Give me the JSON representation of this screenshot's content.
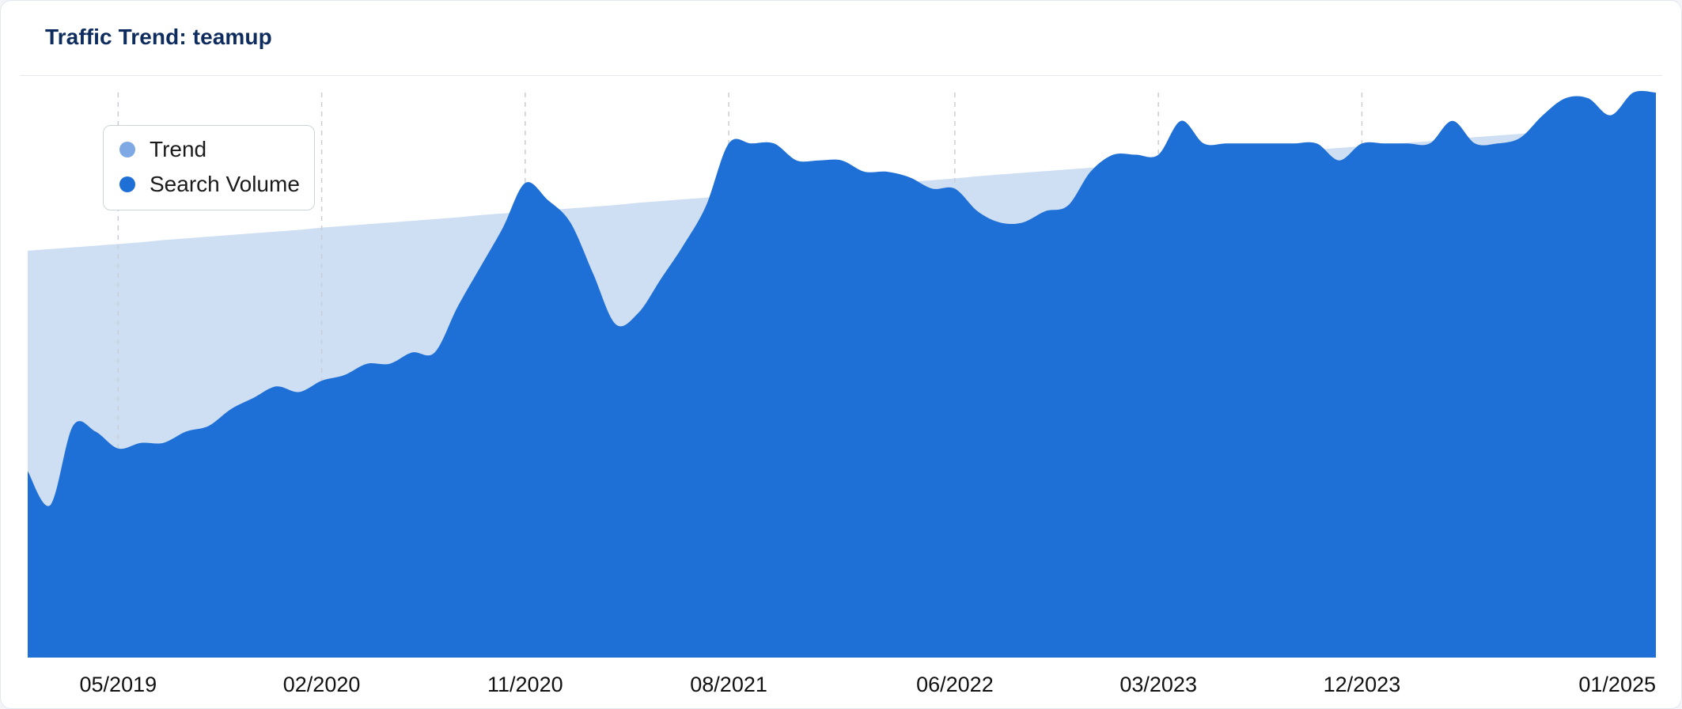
{
  "card": {
    "title": "Traffic Trend: teamup"
  },
  "colors": {
    "search_volume": "#1f70d6",
    "trend_fill": "#cfdff3",
    "trend_legend": "#7ea9e4",
    "gridline": "#c9ced6",
    "axis_text": "#111111"
  },
  "chart_data": {
    "type": "area",
    "title": "Traffic Trend: teamup",
    "xlabel": "",
    "ylabel": "",
    "legend_position": "top-left",
    "grid": "vertical dashed lines at labeled months",
    "x_tick_labels": [
      "05/2019",
      "02/2020",
      "11/2020",
      "08/2021",
      "06/2022",
      "03/2023",
      "12/2023",
      "01/2025"
    ],
    "x_range": [
      "01/2019",
      "01/2025"
    ],
    "y_range": [
      0,
      100
    ],
    "y_axis_labels_shown": false,
    "x": [
      "01/2019",
      "02/2019",
      "03/2019",
      "04/2019",
      "05/2019",
      "06/2019",
      "07/2019",
      "08/2019",
      "09/2019",
      "10/2019",
      "11/2019",
      "12/2019",
      "01/2020",
      "02/2020",
      "03/2020",
      "04/2020",
      "05/2020",
      "06/2020",
      "07/2020",
      "08/2020",
      "09/2020",
      "10/2020",
      "11/2020",
      "12/2020",
      "01/2021",
      "02/2021",
      "03/2021",
      "04/2021",
      "05/2021",
      "06/2021",
      "07/2021",
      "08/2021",
      "09/2021",
      "10/2021",
      "11/2021",
      "12/2021",
      "01/2022",
      "02/2022",
      "03/2022",
      "04/2022",
      "05/2022",
      "06/2022",
      "07/2022",
      "08/2022",
      "09/2022",
      "10/2022",
      "11/2022",
      "12/2022",
      "01/2023",
      "02/2023",
      "03/2023",
      "04/2023",
      "05/2023",
      "06/2023",
      "07/2023",
      "08/2023",
      "09/2023",
      "10/2023",
      "11/2023",
      "12/2023",
      "01/2024",
      "02/2024",
      "03/2024",
      "04/2024",
      "05/2024",
      "06/2024",
      "07/2024",
      "08/2024",
      "09/2024",
      "10/2024",
      "11/2024",
      "12/2024",
      "01/2025"
    ],
    "series": [
      {
        "name": "Trend",
        "values": [
          72,
          72.3,
          72.6,
          72.9,
          73.2,
          73.5,
          73.9,
          74.2,
          74.5,
          74.8,
          75.1,
          75.4,
          75.7,
          76.1,
          76.4,
          76.7,
          77,
          77.3,
          77.6,
          77.9,
          78.3,
          78.6,
          78.9,
          79.2,
          79.5,
          79.8,
          80.1,
          80.5,
          80.8,
          81.1,
          81.4,
          81.7,
          82,
          82.3,
          82.7,
          83,
          83.3,
          83.6,
          83.9,
          84.2,
          84.5,
          84.8,
          85.2,
          85.5,
          85.8,
          86.1,
          86.4,
          86.7,
          87,
          87.4,
          87.7,
          88,
          88.3,
          88.6,
          88.9,
          89.2,
          89.6,
          89.9,
          90.2,
          90.5,
          90.8,
          91.1,
          91.4,
          91.8,
          92.1,
          92.4,
          92.7,
          93,
          93.3,
          93.6,
          94,
          94.3,
          94.6
        ]
      },
      {
        "name": "Search Volume",
        "values": [
          33,
          27,
          41,
          40,
          37,
          38,
          38,
          40,
          41,
          44,
          46,
          48,
          47,
          49,
          50,
          52,
          52,
          54,
          54,
          62,
          69,
          76,
          84,
          81,
          77,
          68,
          59,
          61,
          67,
          73,
          80,
          91,
          91,
          91,
          88,
          88,
          88,
          86,
          86,
          85,
          83,
          83,
          79,
          77,
          77,
          79,
          80,
          86,
          89,
          89,
          89,
          95,
          91,
          91,
          91,
          91,
          91,
          91,
          88,
          91,
          91,
          91,
          91,
          95,
          91,
          91,
          92,
          96,
          99,
          99,
          96,
          100,
          100
        ]
      }
    ]
  }
}
